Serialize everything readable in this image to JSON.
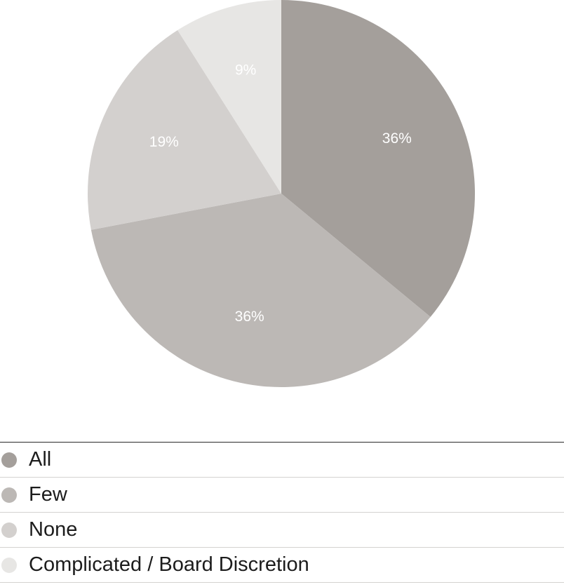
{
  "chart_data": {
    "type": "pie",
    "slices": [
      {
        "name": "All",
        "value": 36,
        "label": "36%",
        "color": "#a49f9b"
      },
      {
        "name": "Few",
        "value": 36,
        "label": "36%",
        "color": "#bcb8b5"
      },
      {
        "name": "None",
        "value": 19,
        "label": "19%",
        "color": "#d3d0ce"
      },
      {
        "name": "Complicated / Board Discretion",
        "value": 9,
        "label": "9%",
        "color": "#e7e6e4"
      }
    ],
    "legend_position": "bottom"
  },
  "legend": {
    "items": [
      {
        "label": "All",
        "color": "#a49f9b"
      },
      {
        "label": "Few",
        "color": "#bcb8b5"
      },
      {
        "label": "None",
        "color": "#d3d0ce"
      },
      {
        "label": "Complicated / Board Discretion",
        "color": "#e7e6e4"
      }
    ]
  }
}
